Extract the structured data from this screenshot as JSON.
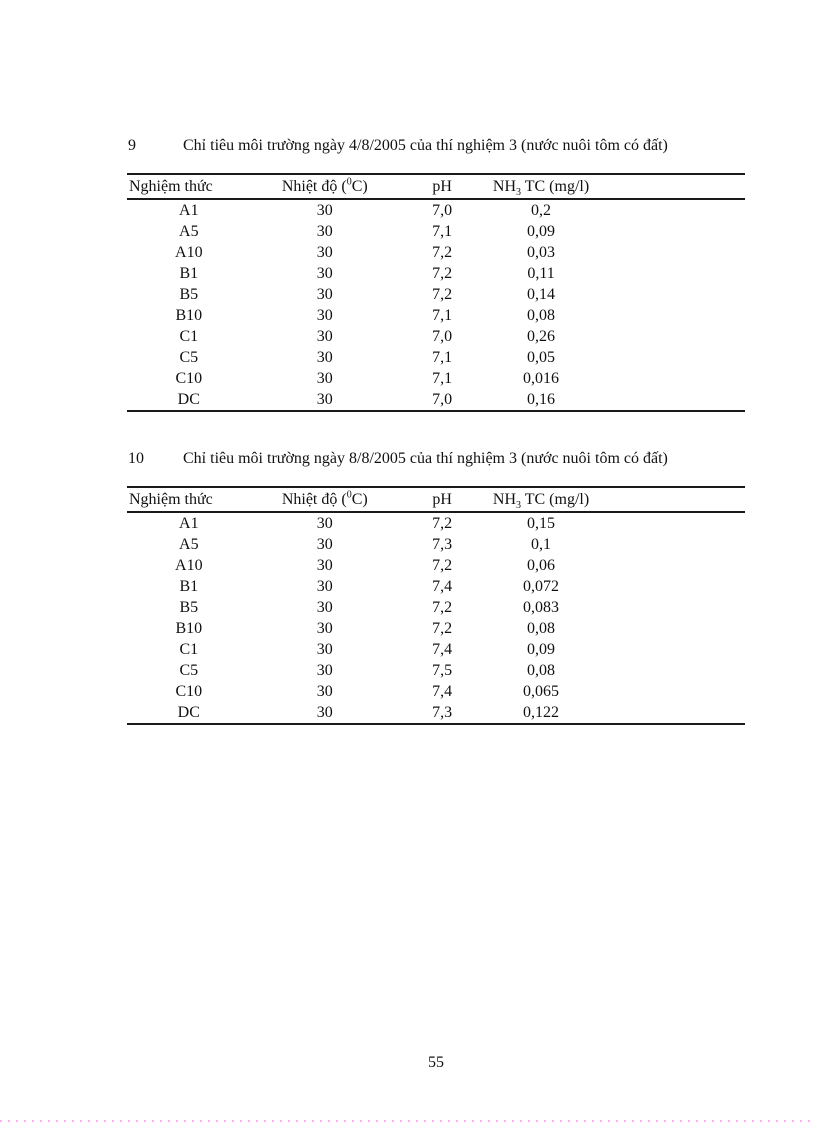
{
  "page": {
    "background": "#ffffff",
    "text_color": "#111111",
    "dotted_line_color": "#ffaef5"
  },
  "tables": [
    {
      "caption_number": "9",
      "caption_text": "Chỉ tiêu môi trường ngày 4/8/2005 của thí nghiệm 3 (nước nuôi tôm có đất)",
      "headers": {
        "col1": "Nghiệm thức",
        "col2_pre": "Nhiệt độ (",
        "col2_sup": "0",
        "col2_post": "C)",
        "col3": "pH",
        "col4_pre": "NH",
        "col4_sub": "3",
        "col4_post": " TC (mg/l)"
      },
      "rows": [
        [
          "A1",
          "30",
          "7,0",
          "0,2"
        ],
        [
          "A5",
          "30",
          "7,1",
          "0,09"
        ],
        [
          "A10",
          "30",
          "7,2",
          "0,03"
        ],
        [
          "B1",
          "30",
          "7,2",
          "0,11"
        ],
        [
          "B5",
          "30",
          "7,2",
          "0,14"
        ],
        [
          "B10",
          "30",
          "7,1",
          "0,08"
        ],
        [
          "C1",
          "30",
          "7,0",
          "0,26"
        ],
        [
          "C5",
          "30",
          "7,1",
          "0,05"
        ],
        [
          "C10",
          "30",
          "7,1",
          "0,016"
        ],
        [
          "DC",
          "30",
          "7,0",
          "0,16"
        ]
      ]
    },
    {
      "caption_number": "10",
      "caption_text": "Chỉ tiêu môi trường ngày 8/8/2005 của thí nghiệm 3 (nước nuôi tôm có đất)",
      "headers": {
        "col1": "Nghiệm thức",
        "col2_pre": "Nhiệt độ (",
        "col2_sup": "0",
        "col2_post": "C)",
        "col3": "pH",
        "col4_pre": "NH",
        "col4_sub": "3",
        "col4_post": " TC (mg/l)"
      },
      "rows": [
        [
          "A1",
          "30",
          "7,2",
          "0,15"
        ],
        [
          "A5",
          "30",
          "7,3",
          "0,1"
        ],
        [
          "A10",
          "30",
          "7,2",
          "0,06"
        ],
        [
          "B1",
          "30",
          "7,4",
          "0,072"
        ],
        [
          "B5",
          "30",
          "7,2",
          "0,083"
        ],
        [
          "B10",
          "30",
          "7,2",
          "0,08"
        ],
        [
          "C1",
          "30",
          "7,4",
          "0,09"
        ],
        [
          "C5",
          "30",
          "7,5",
          "0,08"
        ],
        [
          "C10",
          "30",
          "7,4",
          "0,065"
        ],
        [
          "DC",
          "30",
          "7,3",
          "0,122"
        ]
      ]
    }
  ],
  "footer": {
    "page_number": "55"
  }
}
